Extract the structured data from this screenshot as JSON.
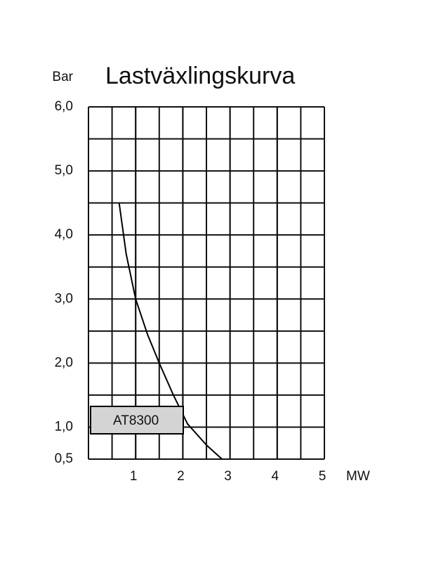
{
  "chart_data": {
    "type": "line",
    "title": "Lastväxlingskurva",
    "ylabel": "Bar",
    "xlabel": "MW",
    "xlim": [
      0,
      5
    ],
    "xticks": [
      1,
      2,
      3,
      4,
      5
    ],
    "xgrid": [
      0.5,
      1,
      1.5,
      2,
      2.5,
      3,
      3.5,
      4,
      4.5
    ],
    "ylim": [
      0.5,
      6.0
    ],
    "yticks": [
      {
        "value": 0.5,
        "label": "0,5"
      },
      {
        "value": 1.0,
        "label": "1,0"
      },
      {
        "value": 2.0,
        "label": "2,0"
      },
      {
        "value": 3.0,
        "label": "3,0"
      },
      {
        "value": 4.0,
        "label": "4,0"
      },
      {
        "value": 5.0,
        "label": "5,0"
      },
      {
        "value": 6.0,
        "label": "6,0"
      }
    ],
    "ygrid": [
      1.5,
      2.5,
      3.5,
      4.5,
      5.5
    ],
    "grid": true,
    "legend": "lower left",
    "series": [
      {
        "name": "AT8300",
        "color": "#000000",
        "x": [
          0.65,
          0.8,
          1.0,
          1.25,
          1.5,
          1.8,
          2.1,
          2.5,
          2.83
        ],
        "values": [
          4.5,
          3.7,
          3.0,
          2.45,
          2.0,
          1.5,
          1.05,
          0.72,
          0.5
        ]
      }
    ]
  }
}
